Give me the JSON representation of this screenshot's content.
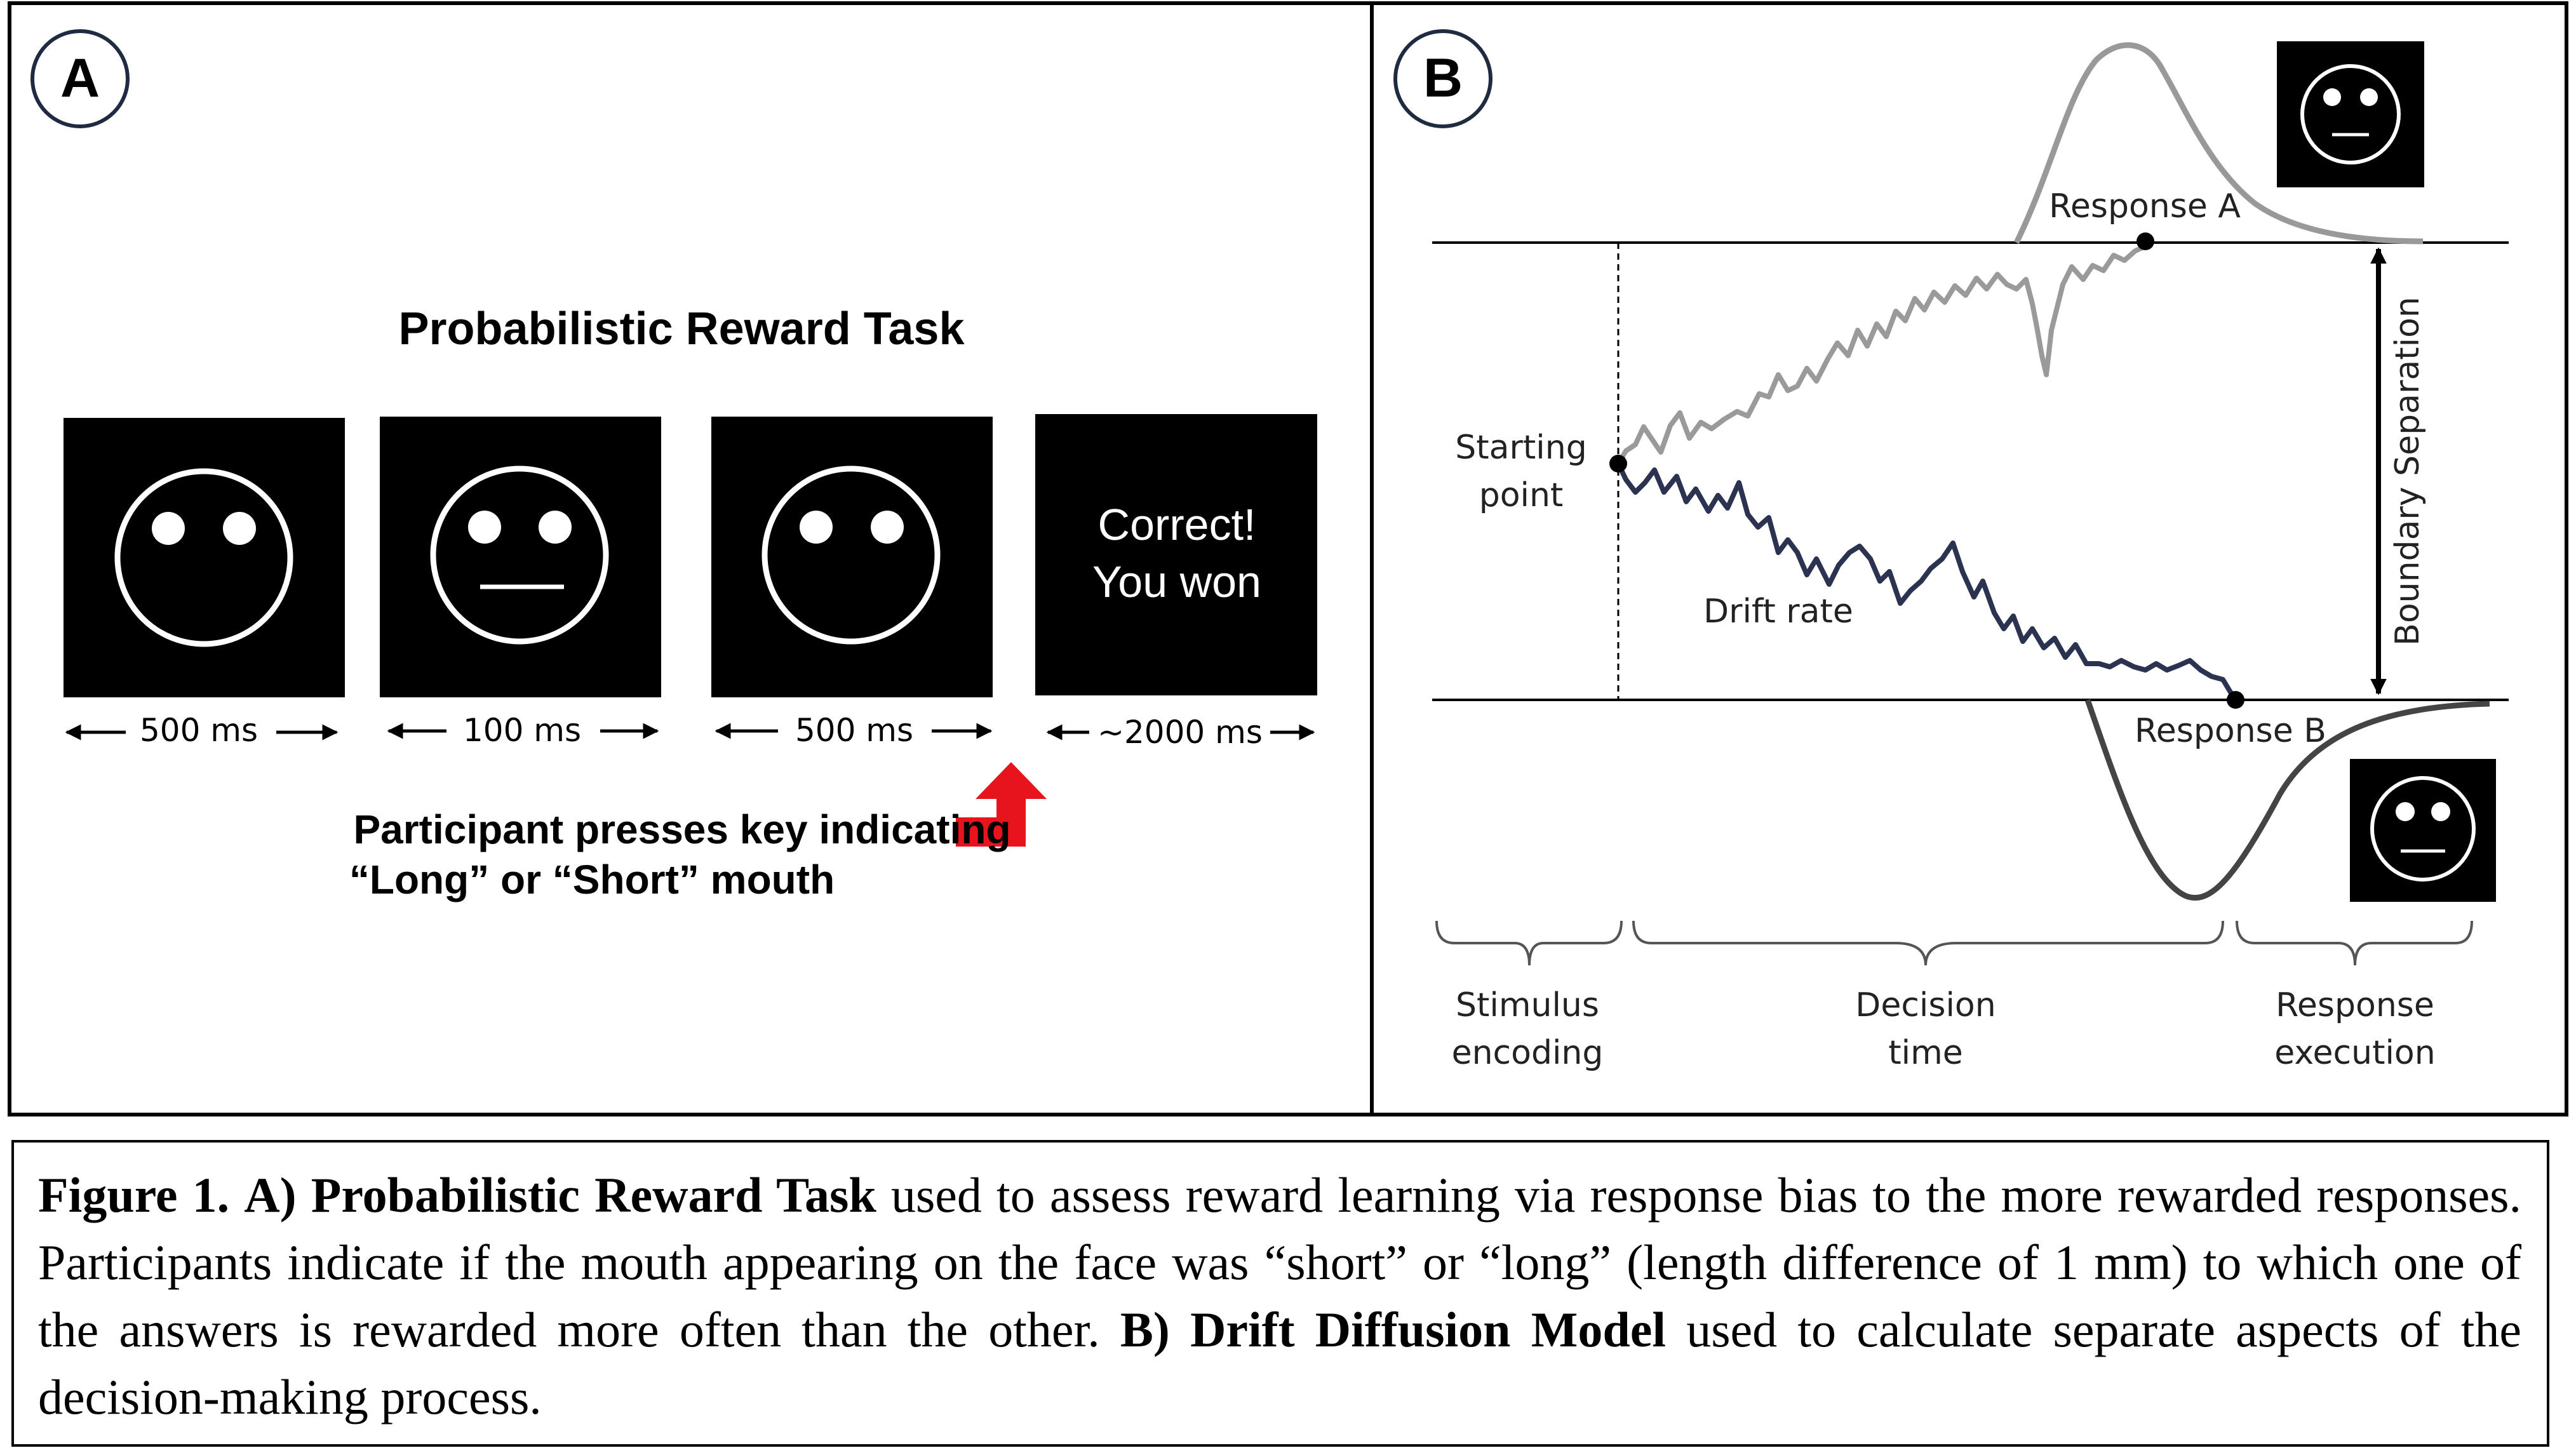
{
  "panel_a": {
    "label": "A",
    "title": "Probabilistic Reward Task",
    "feedback_line1": "Correct!",
    "feedback_line2": "You won",
    "durations": [
      "500 ms",
      "100 ms",
      "500 ms",
      "~2000 ms"
    ],
    "instruction_line1": "Participant presses key indicating",
    "instruction_line2": "“Long” or “Short” mouth"
  },
  "panel_b": {
    "label": "B",
    "response_a": "Response A",
    "response_b": "Response B",
    "starting_point_line1": "Starting",
    "starting_point_line2": "point",
    "drift_rate": "Drift rate",
    "boundary_separation": "Boundary Separation",
    "phase1_line1": "Stimulus",
    "phase1_line2": "encoding",
    "phase2_line1": "Decision",
    "phase2_line2": "time",
    "phase3_line1": "Response",
    "phase3_line2": "execution"
  },
  "caption": {
    "fig_label": "Figure 1.",
    "a_label": "A) Probabilistic Reward Task",
    "a_text": "used to assess reward learning via response bias to the more rewarded responses. Participants indicate if the mouth appearing on the face was “short” or “long” (length difference of 1 mm) to which one of the answers is rewarded more often than the other.",
    "b_label": "B) Drift Diffusion Model",
    "b_text": "used to calculate separate aspects of the decision-making process."
  },
  "colors": {
    "accent_arrow": "#e8141b",
    "upper_path": "#9a9a9a",
    "lower_path": "#2b3350"
  }
}
